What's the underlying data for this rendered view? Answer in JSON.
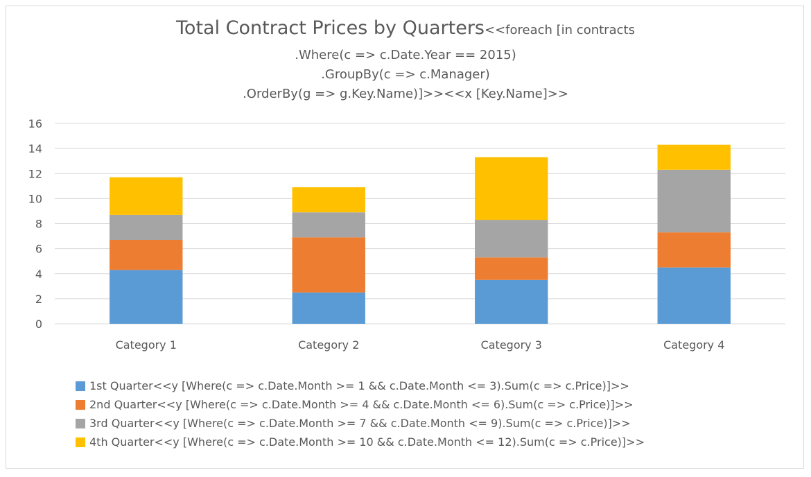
{
  "chart_data": {
    "type": "bar",
    "stacked": true,
    "title": {
      "main": "Total Contract Prices by Quarters",
      "suffix": "<<foreach [in contracts",
      "lines": [
        ".Where(c => c.Date.Year == 2015)",
        ".GroupBy(c => c.Manager)",
        ".OrderBy(g => g.Key.Name)]>><<x [Key.Name]>>"
      ]
    },
    "categories": [
      "Category 1",
      "Category 2",
      "Category 3",
      "Category 4"
    ],
    "ylim": [
      0,
      16
    ],
    "yticks": [
      "0",
      "2",
      "4",
      "6",
      "8",
      "10",
      "12",
      "14",
      "16"
    ],
    "grid": true,
    "legend_position": "bottom",
    "series": [
      {
        "name": "1st Quarter<<y [Where(c => c.Date.Month >= 1 && c.Date.Month <= 3).Sum(c => c.Price)]>>",
        "color": "#5b9bd5",
        "values": [
          4.3,
          2.5,
          3.5,
          4.5
        ]
      },
      {
        "name": "2nd Quarter<<y [Where(c => c.Date.Month >= 4 && c.Date.Month <= 6).Sum(c => c.Price)]>>",
        "color": "#ed7d31",
        "values": [
          2.4,
          4.4,
          1.8,
          2.8
        ]
      },
      {
        "name": "3rd Quarter<<y [Where(c => c.Date.Month >= 7 && c.Date.Month <= 9).Sum(c => c.Price)]>>",
        "color": "#a5a5a5",
        "values": [
          2.0,
          2.0,
          3.0,
          5.0
        ]
      },
      {
        "name": "4th Quarter<<y [Where(c => c.Date.Month >= 10 && c.Date.Month <= 12).Sum(c => c.Price)]>>",
        "color": "#ffc000",
        "values": [
          3.0,
          2.0,
          5.0,
          2.0
        ]
      }
    ]
  }
}
